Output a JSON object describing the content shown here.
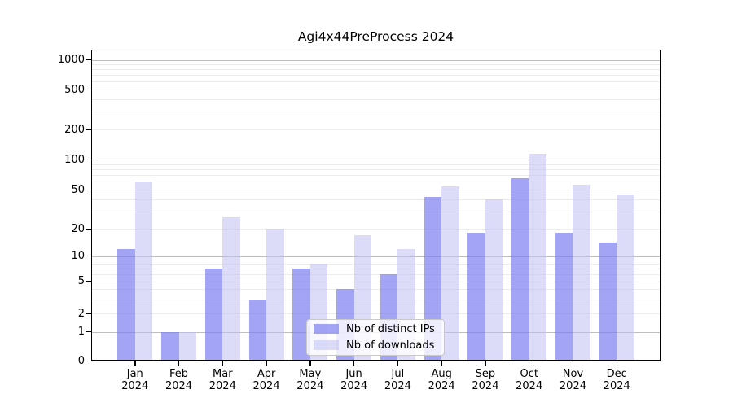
{
  "chart_data": {
    "type": "bar",
    "title": "Agi4x44PreProcess 2024",
    "x_year": "2024",
    "categories": [
      "Jan",
      "Feb",
      "Mar",
      "Apr",
      "May",
      "Jun",
      "Jul",
      "Aug",
      "Sep",
      "Oct",
      "Nov",
      "Dec"
    ],
    "series": [
      {
        "name": "Nb of distinct IPs",
        "color": "rgba(125,125,240,0.7)",
        "values": [
          12,
          1,
          7,
          3,
          7,
          4,
          6,
          42,
          18,
          65,
          18,
          14
        ]
      },
      {
        "name": "Nb of downloads",
        "color": "rgba(191,191,244,0.55)",
        "values": [
          60,
          1,
          26,
          20,
          8,
          17,
          12,
          54,
          40,
          115,
          56,
          45
        ]
      }
    ],
    "y_ticks": [
      0,
      1,
      2,
      5,
      10,
      20,
      50,
      100,
      200,
      500,
      1000
    ],
    "yscale": "symlog",
    "ylim": [
      0,
      1270
    ],
    "xlabel": "",
    "ylabel": "",
    "grid": {
      "major_ticks": [
        1,
        10,
        100,
        1000
      ],
      "minor_subs": [
        2,
        3,
        4,
        5,
        6,
        7,
        8,
        9
      ],
      "major_color": "#bdbdbd",
      "minor_color": "#ececec"
    },
    "legend_position": "lower center",
    "axis_color": "#000000",
    "background_color": "#ffffff"
  }
}
